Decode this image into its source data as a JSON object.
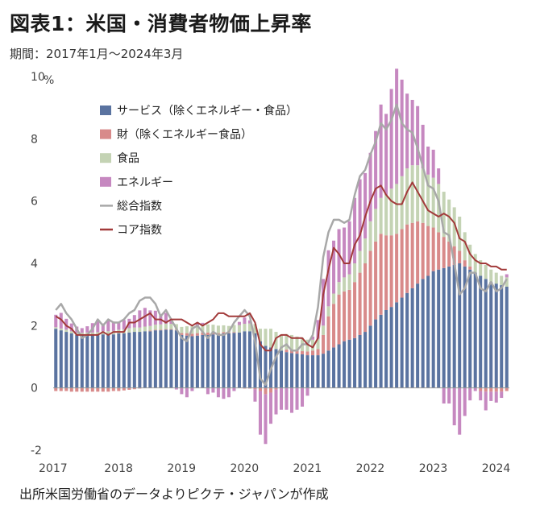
{
  "title": "図表1：米国・消費者物価上昇率",
  "subtitle": "期間：2017年1月～2024年3月",
  "source": "出所米国労働省のデータよりピクテ・ジャパンが作成",
  "chart_data": {
    "type": "bar",
    "stacked": true,
    "ylabel": "",
    "unit": "%",
    "ylim": [
      -2,
      10
    ],
    "yticks": [
      -2,
      0,
      2,
      4,
      6,
      8,
      10
    ],
    "xticks": [
      "2017",
      "2018",
      "2019",
      "2020",
      "2021",
      "2022",
      "2023",
      "2024"
    ],
    "grid": false,
    "legend_position": "top-left",
    "months": [
      "2017-01",
      "2017-02",
      "2017-03",
      "2017-04",
      "2017-05",
      "2017-06",
      "2017-07",
      "2017-08",
      "2017-09",
      "2017-10",
      "2017-11",
      "2017-12",
      "2018-01",
      "2018-02",
      "2018-03",
      "2018-04",
      "2018-05",
      "2018-06",
      "2018-07",
      "2018-08",
      "2018-09",
      "2018-10",
      "2018-11",
      "2018-12",
      "2019-01",
      "2019-02",
      "2019-03",
      "2019-04",
      "2019-05",
      "2019-06",
      "2019-07",
      "2019-08",
      "2019-09",
      "2019-10",
      "2019-11",
      "2019-12",
      "2020-01",
      "2020-02",
      "2020-03",
      "2020-04",
      "2020-05",
      "2020-06",
      "2020-07",
      "2020-08",
      "2020-09",
      "2020-10",
      "2020-11",
      "2020-12",
      "2021-01",
      "2021-02",
      "2021-03",
      "2021-04",
      "2021-05",
      "2021-06",
      "2021-07",
      "2021-08",
      "2021-09",
      "2021-10",
      "2021-11",
      "2021-12",
      "2022-01",
      "2022-02",
      "2022-03",
      "2022-04",
      "2022-05",
      "2022-06",
      "2022-07",
      "2022-08",
      "2022-09",
      "2022-10",
      "2022-11",
      "2022-12",
      "2023-01",
      "2023-02",
      "2023-03",
      "2023-04",
      "2023-05",
      "2023-06",
      "2023-07",
      "2023-08",
      "2023-09",
      "2023-10",
      "2023-11",
      "2023-12",
      "2024-01",
      "2024-02",
      "2024-03"
    ],
    "series": [
      {
        "name": "サービス（除くエネルギー・食品）",
        "kind": "bar",
        "color": "#5a73a0",
        "values": [
          1.9,
          1.85,
          1.8,
          1.75,
          1.7,
          1.7,
          1.7,
          1.7,
          1.7,
          1.72,
          1.72,
          1.72,
          1.75,
          1.75,
          1.78,
          1.8,
          1.8,
          1.82,
          1.82,
          1.85,
          1.85,
          1.87,
          1.87,
          1.85,
          1.7,
          1.68,
          1.66,
          1.68,
          1.7,
          1.7,
          1.72,
          1.72,
          1.75,
          1.75,
          1.77,
          1.78,
          1.82,
          1.82,
          1.75,
          1.5,
          1.35,
          1.3,
          1.25,
          1.2,
          1.15,
          1.12,
          1.1,
          1.08,
          1.05,
          1.05,
          1.05,
          1.1,
          1.2,
          1.3,
          1.4,
          1.5,
          1.55,
          1.6,
          1.7,
          1.8,
          2.0,
          2.2,
          2.35,
          2.5,
          2.6,
          2.75,
          2.9,
          3.05,
          3.2,
          3.35,
          3.5,
          3.6,
          3.75,
          3.8,
          3.85,
          3.9,
          3.95,
          4.0,
          3.9,
          3.8,
          3.7,
          3.6,
          3.5,
          3.4,
          3.35,
          3.3,
          3.25
        ]
      },
      {
        "name": "財（除くエネルギー食品）",
        "kind": "bar",
        "color": "#d88a8a",
        "values": [
          -0.1,
          -0.1,
          -0.1,
          -0.12,
          -0.12,
          -0.12,
          -0.12,
          -0.12,
          -0.12,
          -0.12,
          -0.12,
          -0.1,
          -0.1,
          -0.08,
          -0.06,
          -0.04,
          -0.02,
          0.0,
          0.02,
          0.02,
          0.02,
          0.02,
          0.02,
          0.02,
          0.06,
          0.08,
          0.08,
          0.08,
          0.08,
          0.08,
          0.06,
          0.04,
          0.04,
          0.02,
          0.02,
          0.0,
          -0.02,
          -0.02,
          -0.04,
          -0.1,
          -0.2,
          -0.15,
          -0.05,
          0.0,
          0.08,
          0.1,
          0.1,
          0.1,
          0.12,
          0.15,
          0.2,
          0.6,
          1.1,
          1.4,
          1.6,
          1.6,
          1.6,
          1.8,
          2.0,
          2.2,
          2.4,
          2.5,
          2.6,
          2.4,
          2.3,
          2.2,
          2.2,
          2.2,
          2.1,
          2.0,
          1.8,
          1.6,
          1.4,
          1.2,
          1.0,
          0.8,
          0.6,
          0.4,
          0.2,
          0.1,
          0.0,
          -0.1,
          -0.12,
          -0.12,
          -0.12,
          -0.12,
          -0.1
        ]
      },
      {
        "name": "食品",
        "kind": "bar",
        "color": "#c4d3b4",
        "values": [
          0.05,
          0.06,
          0.07,
          0.07,
          0.07,
          0.07,
          0.08,
          0.08,
          0.09,
          0.1,
          0.1,
          0.11,
          0.12,
          0.13,
          0.14,
          0.14,
          0.14,
          0.15,
          0.15,
          0.16,
          0.17,
          0.17,
          0.17,
          0.18,
          0.2,
          0.22,
          0.24,
          0.25,
          0.26,
          0.26,
          0.25,
          0.24,
          0.22,
          0.22,
          0.23,
          0.24,
          0.24,
          0.25,
          0.3,
          0.4,
          0.55,
          0.6,
          0.55,
          0.52,
          0.5,
          0.48,
          0.45,
          0.43,
          0.38,
          0.35,
          0.33,
          0.3,
          0.32,
          0.33,
          0.4,
          0.45,
          0.5,
          0.6,
          0.7,
          0.8,
          0.95,
          1.05,
          1.15,
          1.3,
          1.5,
          1.6,
          1.7,
          1.8,
          1.85,
          1.8,
          1.75,
          1.65,
          1.6,
          1.55,
          1.45,
          1.35,
          1.25,
          1.1,
          0.9,
          0.7,
          0.6,
          0.5,
          0.45,
          0.4,
          0.35,
          0.3,
          0.3
        ]
      },
      {
        "name": "エネルギー",
        "kind": "bar",
        "color": "#c688c0",
        "values": [
          0.4,
          0.5,
          0.35,
          0.25,
          0.2,
          0.15,
          0.2,
          0.3,
          0.4,
          0.25,
          0.35,
          0.3,
          0.25,
          0.3,
          0.3,
          0.4,
          0.55,
          0.6,
          0.5,
          0.45,
          0.3,
          0.35,
          0.1,
          -0.05,
          -0.2,
          -0.3,
          -0.1,
          0.05,
          0.05,
          -0.2,
          -0.15,
          -0.3,
          -0.35,
          -0.3,
          -0.1,
          0.1,
          0.2,
          0.1,
          -0.4,
          -1.4,
          -1.6,
          -1.0,
          -0.8,
          -0.7,
          -0.7,
          -0.8,
          -0.7,
          -0.6,
          -0.25,
          0.1,
          0.6,
          1.5,
          1.8,
          1.7,
          1.7,
          1.6,
          1.7,
          2.1,
          2.3,
          2.1,
          2.2,
          2.5,
          3.0,
          2.6,
          3.2,
          3.7,
          3.1,
          2.4,
          2.1,
          1.9,
          1.4,
          0.9,
          0.9,
          0.5,
          -0.5,
          -0.5,
          -1.2,
          -1.5,
          -0.9,
          -0.4,
          -0.1,
          -0.3,
          -0.6,
          -0.3,
          -0.35,
          -0.2,
          0.1
        ]
      },
      {
        "name": "総合指数",
        "kind": "line",
        "color": "#a8a8a8",
        "values": [
          2.5,
          2.7,
          2.4,
          2.2,
          1.9,
          1.6,
          1.7,
          1.9,
          2.2,
          2.0,
          2.2,
          2.1,
          2.1,
          2.2,
          2.4,
          2.5,
          2.8,
          2.9,
          2.9,
          2.7,
          2.3,
          2.5,
          2.2,
          1.9,
          1.6,
          1.5,
          1.9,
          2.0,
          1.8,
          1.6,
          1.8,
          1.7,
          1.7,
          1.8,
          2.1,
          2.3,
          2.5,
          2.3,
          1.5,
          0.3,
          0.1,
          0.6,
          1.0,
          1.3,
          1.4,
          1.2,
          1.2,
          1.4,
          1.4,
          1.7,
          2.6,
          4.2,
          5.0,
          5.4,
          5.4,
          5.3,
          5.4,
          6.2,
          6.8,
          7.0,
          7.5,
          7.9,
          8.5,
          8.3,
          8.6,
          9.1,
          8.5,
          8.3,
          8.2,
          7.7,
          7.1,
          6.5,
          6.4,
          6.0,
          5.0,
          4.9,
          4.0,
          3.0,
          3.2,
          3.7,
          3.7,
          3.2,
          3.1,
          3.4,
          3.1,
          3.2,
          3.5
        ]
      },
      {
        "name": "コア指数",
        "kind": "line",
        "color": "#a23a3a",
        "values": [
          2.3,
          2.2,
          2.0,
          1.9,
          1.7,
          1.7,
          1.7,
          1.7,
          1.7,
          1.8,
          1.7,
          1.8,
          1.8,
          1.8,
          2.1,
          2.1,
          2.2,
          2.3,
          2.4,
          2.2,
          2.2,
          2.1,
          2.2,
          2.2,
          2.2,
          2.1,
          2.0,
          2.1,
          2.0,
          2.1,
          2.2,
          2.4,
          2.4,
          2.3,
          2.3,
          2.3,
          2.3,
          2.4,
          2.1,
          1.4,
          1.2,
          1.2,
          1.6,
          1.7,
          1.7,
          1.6,
          1.6,
          1.6,
          1.4,
          1.3,
          1.6,
          3.0,
          3.8,
          4.5,
          4.3,
          4.0,
          4.0,
          4.6,
          4.9,
          5.5,
          6.0,
          6.4,
          6.5,
          6.2,
          6.0,
          5.9,
          5.9,
          6.3,
          6.6,
          6.3,
          6.0,
          5.7,
          5.6,
          5.5,
          5.6,
          5.5,
          5.3,
          4.8,
          4.7,
          4.3,
          4.1,
          4.0,
          4.0,
          3.9,
          3.9,
          3.8,
          3.8
        ]
      }
    ]
  }
}
